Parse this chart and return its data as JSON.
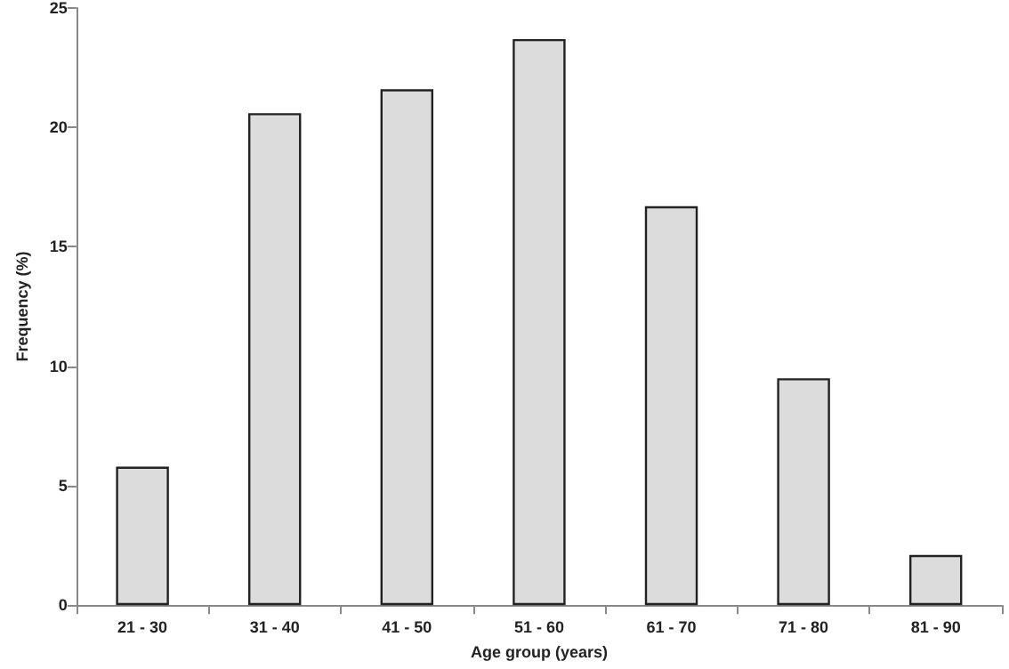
{
  "chart_data": {
    "type": "bar",
    "xlabel": "Age group (years)",
    "ylabel": "Frequency (%)",
    "categories": [
      "21 - 30",
      "31 - 40",
      "41 - 50",
      "51 - 60",
      "61 - 70",
      "71 - 80",
      "81 - 90"
    ],
    "values": [
      5.8,
      20.6,
      21.6,
      23.7,
      16.7,
      9.5,
      2.1
    ],
    "color": "#dcdcdc",
    "ylim": [
      0,
      25
    ],
    "yticks": [
      0,
      5,
      10,
      15,
      20,
      25
    ],
    "grid": false
  }
}
